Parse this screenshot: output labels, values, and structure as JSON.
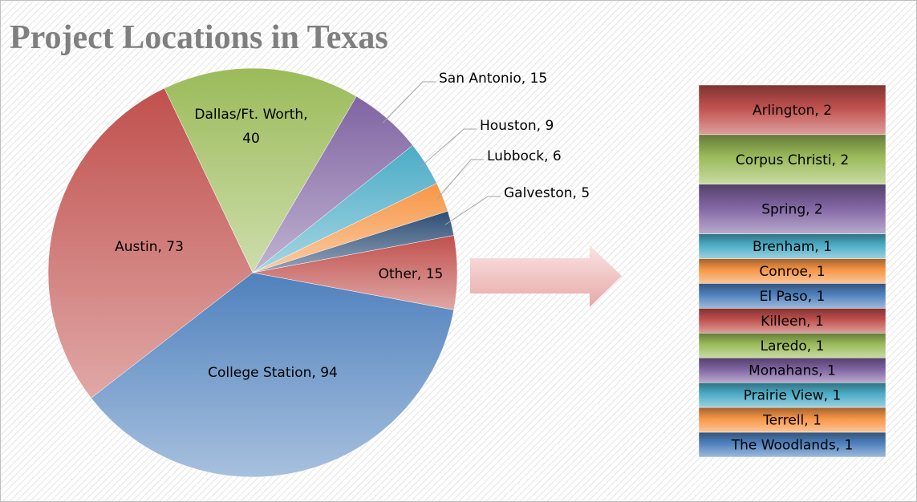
{
  "chart_data": [
    {
      "type": "pie",
      "title": "Project Locations in Texas",
      "categories": [
        "Other",
        "College Station",
        "Austin",
        "Dallas/Ft. Worth",
        "San Antonio",
        "Houston",
        "Lubbock",
        "Galveston"
      ],
      "values": [
        15,
        94,
        73,
        40,
        15,
        9,
        6,
        5
      ],
      "value_labels": [
        "Other, 15",
        "College Station, 94",
        "Austin, 73",
        "Dallas/Ft. Worth, 40",
        "San Antonio, 15",
        "Houston, 9",
        "Lubbock, 6",
        "Galveston, 5"
      ],
      "colors": [
        "#c0504d",
        "#4f81bd",
        "#c0504d",
        "#9bbb59",
        "#8064a2",
        "#4bacc6",
        "#f79646",
        "#2c4d75"
      ]
    },
    {
      "type": "bar",
      "stacked": true,
      "categories": [
        "Arlington",
        "Corpus Christi",
        "Spring",
        "Brenham",
        "Conroe",
        "El Paso",
        "Killeen",
        "Laredo",
        "Monahans",
        "Prairie View",
        "Terrell",
        "The Woodlands"
      ],
      "values": [
        2,
        2,
        2,
        1,
        1,
        1,
        1,
        1,
        1,
        1,
        1,
        1
      ],
      "value_labels": [
        "Arlington, 2",
        "Corpus Christi, 2",
        "Spring, 2",
        "Brenham, 1",
        "Conroe, 1",
        "El Paso, 1",
        "Killeen, 1",
        "Laredo, 1",
        "Monahans, 1",
        "Prairie View, 1",
        "Terrell, 1",
        "The Woodlands, 1"
      ],
      "colors": [
        "#c0504d",
        "#9bbb59",
        "#8064a2",
        "#4bacc6",
        "#f79646",
        "#4f81bd",
        "#c0504d",
        "#9bbb59",
        "#8064a2",
        "#4bacc6",
        "#f79646",
        "#4f81bd"
      ]
    }
  ]
}
